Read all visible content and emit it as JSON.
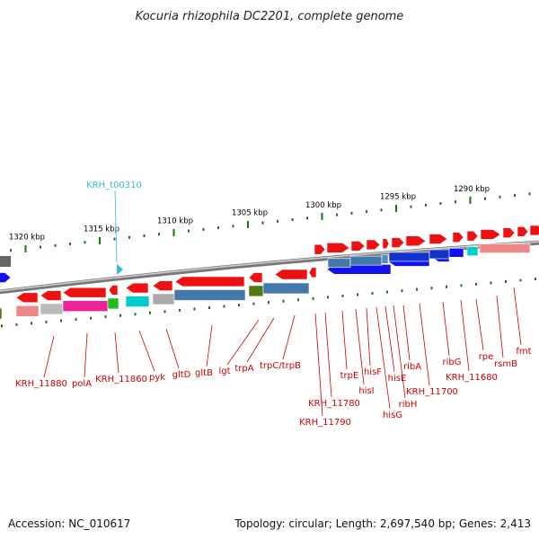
{
  "title": "Kocuria rhizophila DC2201, complete genome",
  "footer": {
    "accession": "Accession: NC_010617",
    "topology": "Topology: circular; Length: 2,697,540 bp; Genes: 2,413"
  },
  "colors": {
    "forward_gene": "#ee1111",
    "backbone": "#888888",
    "tick": "#117711",
    "label": "#cc0000",
    "trna_label": "#33bbdd"
  },
  "kbp_marks": [
    {
      "label": "1320 kbp"
    },
    {
      "label": "1315 kbp"
    },
    {
      "label": "1310 kbp"
    },
    {
      "label": "1305 kbp"
    },
    {
      "label": "1300 kbp"
    },
    {
      "label": "1295 kbp"
    },
    {
      "label": "1290 kbp"
    }
  ],
  "trna_label": "KRH_t00310",
  "gene_labels": [
    "KRH_11880",
    "polA",
    "KRH_11860",
    "pyk",
    "gltD",
    "gltB",
    "lgt",
    "trpA",
    "trpC/trpB",
    "KRH_11790",
    "KRH_11780",
    "trpE",
    "hisI",
    "hisF",
    "hisG",
    "hisE",
    "ribH",
    "ribA",
    "KRH_11700",
    "ribG",
    "KRH_11680",
    "rpe",
    "rsmB",
    "fmt"
  ]
}
